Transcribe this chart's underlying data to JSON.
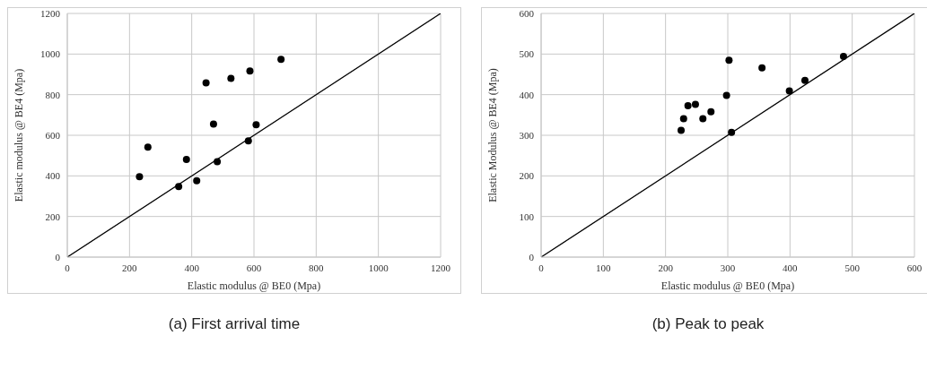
{
  "chart_data": [
    {
      "type": "scatter",
      "title": "(a) First arrival time",
      "xlabel": "Elastic modulus @ BE0 (Mpa)",
      "ylabel": "Elastic modulus @ BE4 (Mpa)",
      "xlim": [
        0,
        1200
      ],
      "ylim": [
        0,
        1200
      ],
      "xticks": [
        0,
        200,
        400,
        600,
        800,
        1000,
        1200
      ],
      "yticks": [
        0,
        200,
        400,
        600,
        800,
        1000,
        1200
      ],
      "grid": true,
      "series": [
        {
          "marker": "circle",
          "color": "#000000",
          "x": [
            232,
            259,
            358,
            383,
            416,
            446,
            470,
            482,
            526,
            582,
            587,
            607,
            687
          ],
          "values": [
            396,
            542,
            347,
            481,
            376,
            858,
            655,
            470,
            880,
            572,
            916,
            652,
            974
          ]
        },
        {
          "type": "line",
          "color": "#000000",
          "x": [
            0,
            1200
          ],
          "values": [
            0,
            1200
          ]
        }
      ]
    },
    {
      "type": "scatter",
      "title": "(b) Peak to peak",
      "xlabel": "Elastic modulus @ BE0 (Mpa)",
      "ylabel": "Elastic Modulus @ BE4 (Mpa)",
      "xlim": [
        0,
        600
      ],
      "ylim": [
        0,
        600
      ],
      "xticks": [
        0,
        100,
        200,
        300,
        400,
        500,
        600
      ],
      "yticks": [
        0,
        100,
        200,
        300,
        400,
        500,
        600
      ],
      "grid": true,
      "series": [
        {
          "marker": "circle",
          "color": "#000000",
          "x": [
            225,
            229,
            236,
            248,
            260,
            273,
            298,
            302,
            306,
            355,
            399,
            424,
            486
          ],
          "values": [
            312,
            341,
            373,
            376,
            341,
            358,
            398,
            485,
            307,
            466,
            409,
            435,
            494
          ]
        },
        {
          "type": "line",
          "color": "#000000",
          "x": [
            0,
            600
          ],
          "values": [
            0,
            600
          ]
        }
      ]
    }
  ]
}
